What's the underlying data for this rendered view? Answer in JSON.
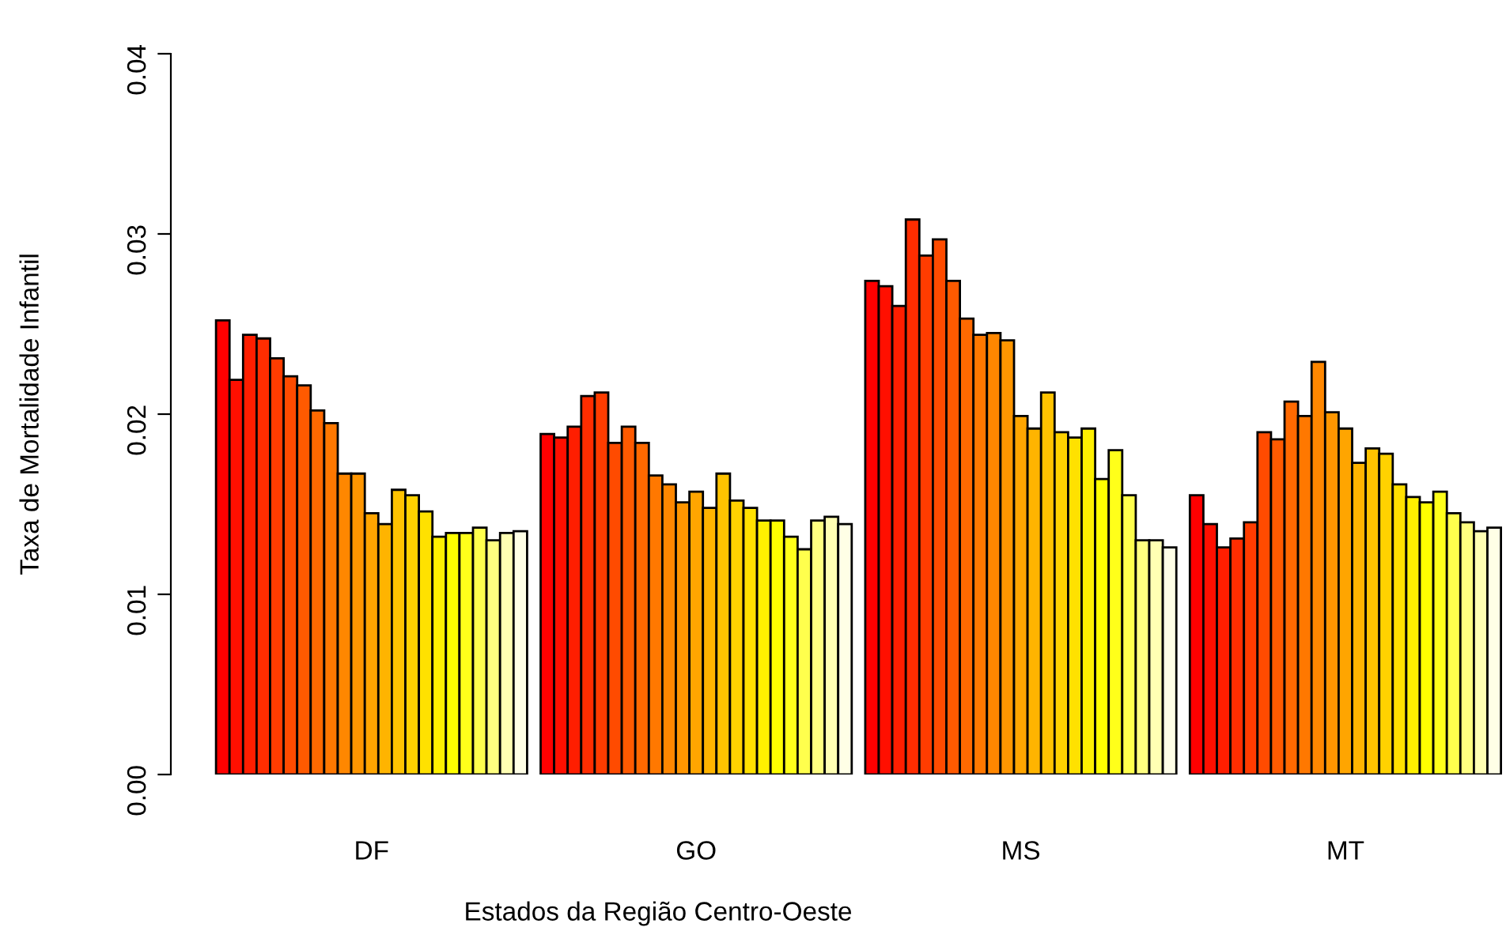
{
  "chart_data": {
    "type": "bar",
    "xlabel": "Estados da Região Centro-Oeste",
    "ylabel": "Taxa de Mortalidade Infantil",
    "categories": [
      "DF",
      "GO",
      "MS",
      "MT"
    ],
    "ylim": [
      0,
      0.04
    ],
    "yticks": [
      {
        "value": 0,
        "label": "0.00"
      },
      0.01,
      0.02,
      0.03,
      {
        "value": 0.04,
        "label": "0.04"
      }
    ],
    "legend": false,
    "grid": false,
    "series": [
      {
        "color": "#ff0000",
        "values": [
          0.0252,
          0.0189,
          0.0274,
          0.0155
        ]
      },
      {
        "color": "#ff0f00",
        "values": [
          0.0219,
          0.0187,
          0.0271,
          0.0139
        ]
      },
      {
        "color": "#ff1e00",
        "values": [
          0.0244,
          0.0193,
          0.026,
          0.0126
        ]
      },
      {
        "color": "#ff2d00",
        "values": [
          0.0242,
          0.021,
          0.0308,
          0.0131
        ]
      },
      {
        "color": "#ff3c00",
        "values": [
          0.0231,
          0.0212,
          0.0288,
          0.014
        ]
      },
      {
        "color": "#ff4b00",
        "values": [
          0.0221,
          0.0184,
          0.0297,
          0.019
        ]
      },
      {
        "color": "#ff5a00",
        "values": [
          0.0216,
          0.0193,
          0.0274,
          0.0186
        ]
      },
      {
        "color": "#ff6900",
        "values": [
          0.0202,
          0.0184,
          0.0253,
          0.0207
        ]
      },
      {
        "color": "#ff7800",
        "values": [
          0.0195,
          0.0166,
          0.0244,
          0.0199
        ]
      },
      {
        "color": "#ff8700",
        "values": [
          0.0167,
          0.0161,
          0.0245,
          0.0229
        ]
      },
      {
        "color": "#ff9600",
        "values": [
          0.0167,
          0.0151,
          0.0241,
          0.0201
        ]
      },
      {
        "color": "#ffa500",
        "values": [
          0.0145,
          0.0157,
          0.0199,
          0.0192
        ]
      },
      {
        "color": "#ffb400",
        "values": [
          0.0139,
          0.0148,
          0.0192,
          0.0173
        ]
      },
      {
        "color": "#ffc300",
        "values": [
          0.0158,
          0.0167,
          0.0212,
          0.0181
        ]
      },
      {
        "color": "#ffd200",
        "values": [
          0.0155,
          0.0152,
          0.019,
          0.0178
        ]
      },
      {
        "color": "#ffe100",
        "values": [
          0.0146,
          0.0148,
          0.0187,
          0.0161
        ]
      },
      {
        "color": "#fff000",
        "values": [
          0.0132,
          0.0141,
          0.0192,
          0.0154
        ]
      },
      {
        "color": "#ffff00",
        "values": [
          0.0134,
          0.0141,
          0.0164,
          0.0151
        ]
      },
      {
        "color": "#ffff1a",
        "values": [
          0.0134,
          0.0132,
          0.018,
          0.0157
        ]
      },
      {
        "color": "#ffff4d",
        "values": [
          0.0137,
          0.0125,
          0.0155,
          0.0145
        ]
      },
      {
        "color": "#ffff80",
        "values": [
          0.013,
          0.0141,
          0.013,
          0.014
        ]
      },
      {
        "color": "#ffffb3",
        "values": [
          0.0134,
          0.0143,
          0.013,
          0.0135
        ]
      },
      {
        "color": "#ffffe6",
        "values": [
          0.0135,
          0.0139,
          0.0126,
          0.0137
        ]
      }
    ]
  }
}
